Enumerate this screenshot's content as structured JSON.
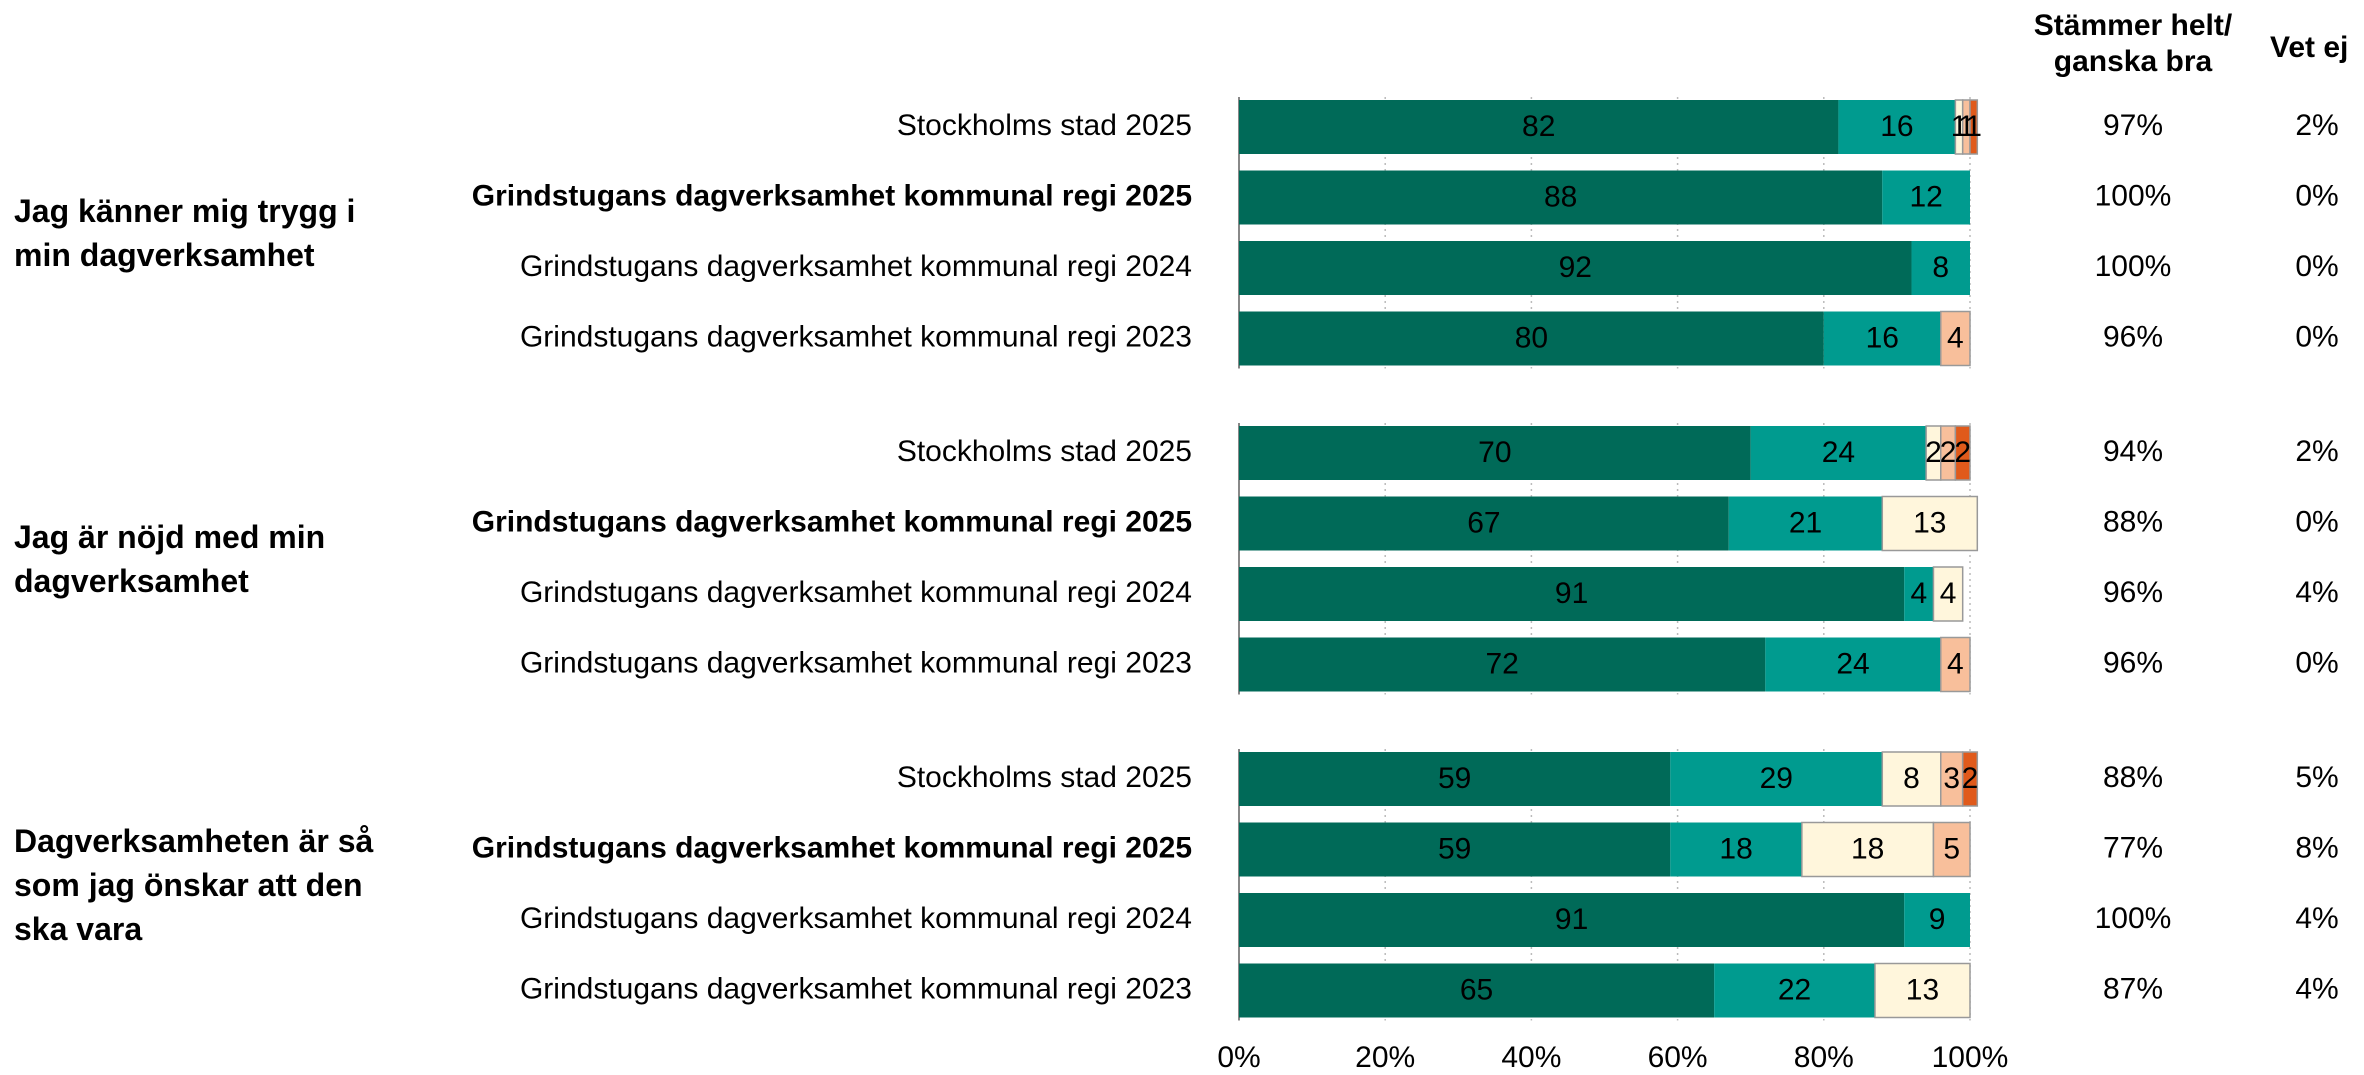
{
  "chart_data": {
    "type": "stacked_bar_horizontal",
    "groups": [
      {
        "label": "Jag känner mig trygg i min dagverksamhet"
      },
      {
        "label": "Jag är nöjd med min dagverksamhet"
      },
      {
        "label": "Dagverksamheten är så som jag önskar att den ska vara"
      }
    ],
    "rows_per_group": 4,
    "categories": [
      "Stockholms stad 2025",
      "Grindstugans dagverksamhet kommunal regi 2025",
      "Grindstugans dagverksamhet kommunal regi 2024",
      "Grindstugans dagverksamhet kommunal regi 2023",
      "Stockholms stad 2025",
      "Grindstugans dagverksamhet kommunal regi 2025",
      "Grindstugans dagverksamhet kommunal regi 2024",
      "Grindstugans dagverksamhet kommunal regi 2023",
      "Stockholms stad 2025",
      "Grindstugans dagverksamhet kommunal regi 2025",
      "Grindstugans dagverksamhet kommunal regi 2024",
      "Grindstugans dagverksamhet kommunal regi 2023"
    ],
    "bold": [
      false,
      true,
      false,
      false,
      false,
      true,
      false,
      false,
      false,
      true,
      false,
      false
    ],
    "series": [
      {
        "color": "#006a58",
        "label_color": "#ffffff",
        "values": [
          82,
          88,
          92,
          80,
          70,
          67,
          91,
          72,
          59,
          59,
          91,
          65
        ]
      },
      {
        "color": "#009b8f",
        "label_color": "#000000",
        "values": [
          16,
          12,
          8,
          16,
          24,
          21,
          4,
          24,
          29,
          18,
          9,
          22
        ]
      },
      {
        "color": "#fff6dc",
        "label_color": "#000000",
        "values": [
          1,
          null,
          null,
          null,
          2,
          13,
          4,
          null,
          8,
          18,
          null,
          13
        ]
      },
      {
        "color": "#f8bf9b",
        "label_color": "#000000",
        "values": [
          1,
          null,
          null,
          4,
          2,
          null,
          null,
          4,
          3,
          5,
          null,
          null
        ]
      },
      {
        "color": "#e05a1b",
        "label_color": "#000000",
        "values": [
          1,
          null,
          null,
          null,
          2,
          null,
          null,
          null,
          2,
          null,
          null,
          null
        ]
      }
    ],
    "xlim": [
      0,
      100
    ],
    "xticks": [
      {
        "value": 0,
        "label": "0%"
      },
      {
        "value": 20,
        "label": "20%"
      },
      {
        "value": 40,
        "label": "40%"
      },
      {
        "value": 60,
        "label": "60%"
      },
      {
        "value": 80,
        "label": "80%"
      },
      {
        "value": 100,
        "label": "100%"
      }
    ],
    "grid": true,
    "columns": [
      {
        "header": "Stämmer helt/ ganska bra",
        "values": [
          97,
          100,
          100,
          96,
          94,
          88,
          96,
          96,
          88,
          77,
          100,
          87
        ],
        "value_labels": [
          "97%",
          "100%",
          "100%",
          "96%",
          "94%",
          "88%",
          "96%",
          "96%",
          "88%",
          "77%",
          "100%",
          "87%"
        ]
      },
      {
        "header": "Vet ej",
        "values": [
          2,
          0,
          0,
          0,
          2,
          0,
          4,
          0,
          5,
          8,
          4,
          4
        ],
        "value_labels": [
          "2%",
          "0%",
          "0%",
          "0%",
          "2%",
          "0%",
          "4%",
          "0%",
          "5%",
          "8%",
          "4%",
          "4%"
        ]
      }
    ]
  }
}
